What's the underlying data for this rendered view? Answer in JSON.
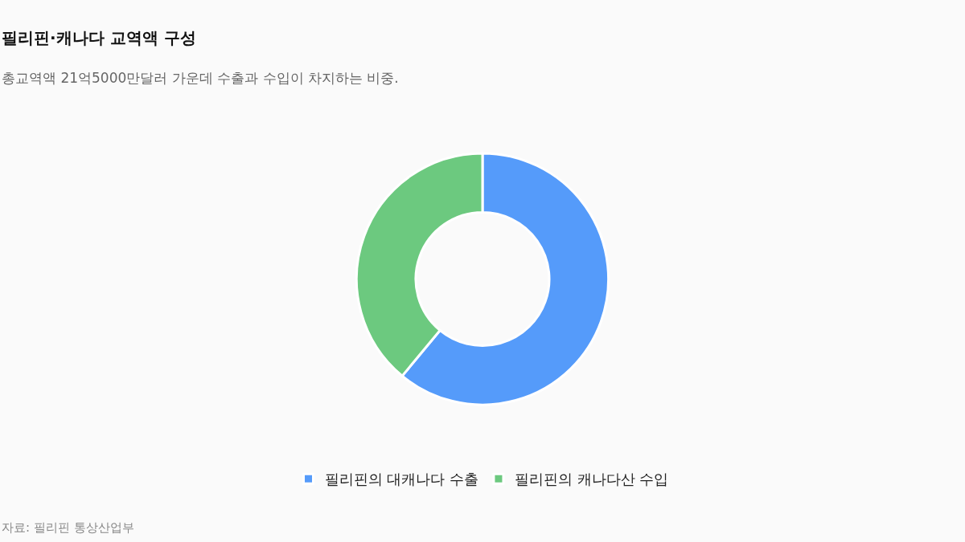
{
  "chart_data": {
    "type": "donut",
    "title": "필리핀·캐나다 교역액 구성",
    "subtitle": "총교역액 21억5000만달러 가운데 수출과 수입이 차지하는 비중.",
    "categories": [
      "필리핀의 대캐나다 수출",
      "필리핀의 캐나다산 수입"
    ],
    "values": [
      61,
      39
    ],
    "colors": [
      "#559bfa",
      "#6cc97f"
    ],
    "legend": "bottom",
    "annotations": [
      "자료: 필리핀 통상산업부"
    ]
  }
}
